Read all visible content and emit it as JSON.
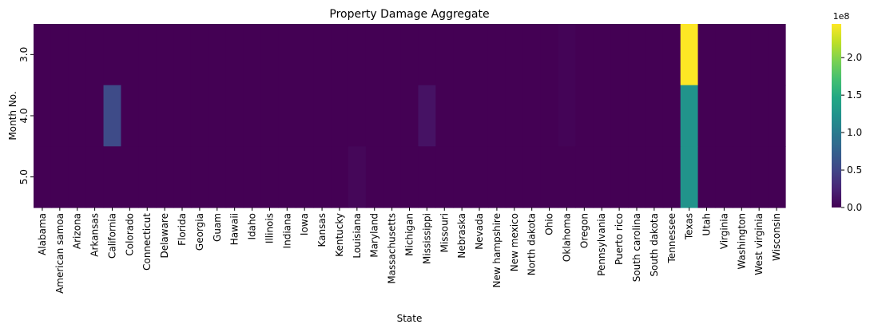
{
  "chart_data": {
    "type": "heatmap",
    "title": "Property Damage Aggregate",
    "xlabel": "State",
    "ylabel": "Month No.",
    "x_categories": [
      "Alabama",
      "American samoa",
      "Arizona",
      "Arkansas",
      "California",
      "Colorado",
      "Connecticut",
      "Delaware",
      "Florida",
      "Georgia",
      "Guam",
      "Hawaii",
      "Idaho",
      "Illinois",
      "Indiana",
      "Iowa",
      "Kansas",
      "Kentucky",
      "Louisiana",
      "Maryland",
      "Massachusetts",
      "Michigan",
      "Mississippi",
      "Missouri",
      "Nebraska",
      "Nevada",
      "New hampshire",
      "New mexico",
      "North dakota",
      "Ohio",
      "Oklahoma",
      "Oregon",
      "Pennsylvania",
      "Puerto rico",
      "South carolina",
      "South dakota",
      "Tennessee",
      "Texas",
      "Utah",
      "Virginia",
      "Washington",
      "West virginia",
      "Wisconsin"
    ],
    "y_categories": [
      "3.0",
      "4.0",
      "5.0"
    ],
    "values": [
      [
        0,
        0,
        0,
        0,
        0,
        0,
        0,
        0,
        0,
        0,
        0,
        0,
        0,
        0,
        0,
        0,
        0,
        0,
        0,
        0,
        0,
        0,
        0,
        0,
        0,
        0,
        0,
        0,
        0,
        0,
        2000000,
        0,
        0,
        0,
        0,
        0,
        0,
        245000000,
        0,
        0,
        0,
        0,
        0
      ],
      [
        0,
        0,
        0,
        0,
        55000000,
        0,
        0,
        0,
        0,
        0,
        0,
        0,
        0,
        0,
        0,
        0,
        0,
        0,
        0,
        0,
        0,
        0,
        12000000,
        0,
        0,
        0,
        0,
        0,
        0,
        0,
        2000000,
        0,
        0,
        0,
        0,
        0,
        0,
        125000000,
        0,
        0,
        0,
        0,
        0
      ],
      [
        0,
        0,
        0,
        0,
        0,
        0,
        0,
        0,
        0,
        0,
        0,
        0,
        0,
        0,
        0,
        0,
        0,
        0,
        4000000,
        0,
        0,
        0,
        0,
        0,
        0,
        0,
        0,
        0,
        0,
        0,
        0,
        0,
        0,
        0,
        0,
        0,
        0,
        125000000,
        0,
        0,
        0,
        0,
        0
      ]
    ],
    "colormap": "viridis",
    "vmin": 0,
    "vmax": 245000000,
    "colorbar": {
      "ticks": [
        0,
        50000000,
        100000000,
        150000000,
        200000000
      ],
      "tick_labels": [
        "0.0",
        "0.5",
        "1.0",
        "1.5",
        "2.0"
      ],
      "offset_label": "1e8"
    }
  }
}
